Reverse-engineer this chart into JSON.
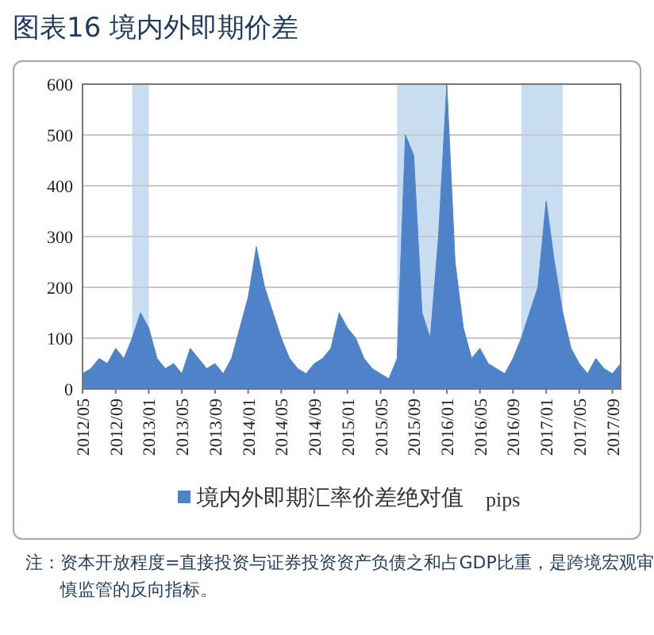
{
  "chart_data": {
    "type": "area",
    "title": "图表16  境内外即期价差",
    "categories": [
      "2012/05",
      null,
      null,
      null,
      "2012/09",
      null,
      null,
      null,
      "2013/01",
      null,
      null,
      null,
      "2013/05",
      null,
      null,
      null,
      "2013/09",
      null,
      null,
      null,
      "2014/01",
      null,
      null,
      null,
      "2014/05",
      null,
      null,
      null,
      "2014/09",
      null,
      null,
      null,
      "2015/01",
      null,
      null,
      null,
      "2015/05",
      null,
      null,
      null,
      "2015/09",
      null,
      null,
      null,
      "2016/01",
      null,
      null,
      null,
      "2016/05",
      null,
      null,
      null,
      "2016/09",
      null,
      null,
      null,
      "2017/01",
      null,
      null,
      null,
      "2017/05",
      null,
      null,
      null,
      "2017/09",
      null
    ],
    "series": [
      {
        "name": "境内外即期汇率价差绝对值",
        "color": "#4f83c9",
        "values": [
          30,
          40,
          60,
          50,
          80,
          60,
          100,
          150,
          120,
          60,
          40,
          50,
          30,
          80,
          60,
          40,
          50,
          30,
          60,
          120,
          180,
          280,
          200,
          150,
          100,
          60,
          40,
          30,
          50,
          60,
          80,
          150,
          120,
          100,
          60,
          40,
          30,
          20,
          60,
          500,
          460,
          150,
          100,
          300,
          600,
          250,
          120,
          60,
          80,
          50,
          40,
          30,
          60,
          100,
          150,
          200,
          370,
          250,
          150,
          80,
          50,
          30,
          60,
          40,
          30,
          50
        ]
      }
    ],
    "ylim": [
      0,
      600
    ],
    "yticks": [
      0,
      100,
      200,
      300,
      400,
      500,
      600
    ],
    "grid": "y",
    "legend": "bottom",
    "annotations": [
      "pips",
      "注：资本开放程度=直接投资与证券投资资产负债之和占GDP比重，是跨境宏观审慎监管的反向指标。"
    ]
  }
}
